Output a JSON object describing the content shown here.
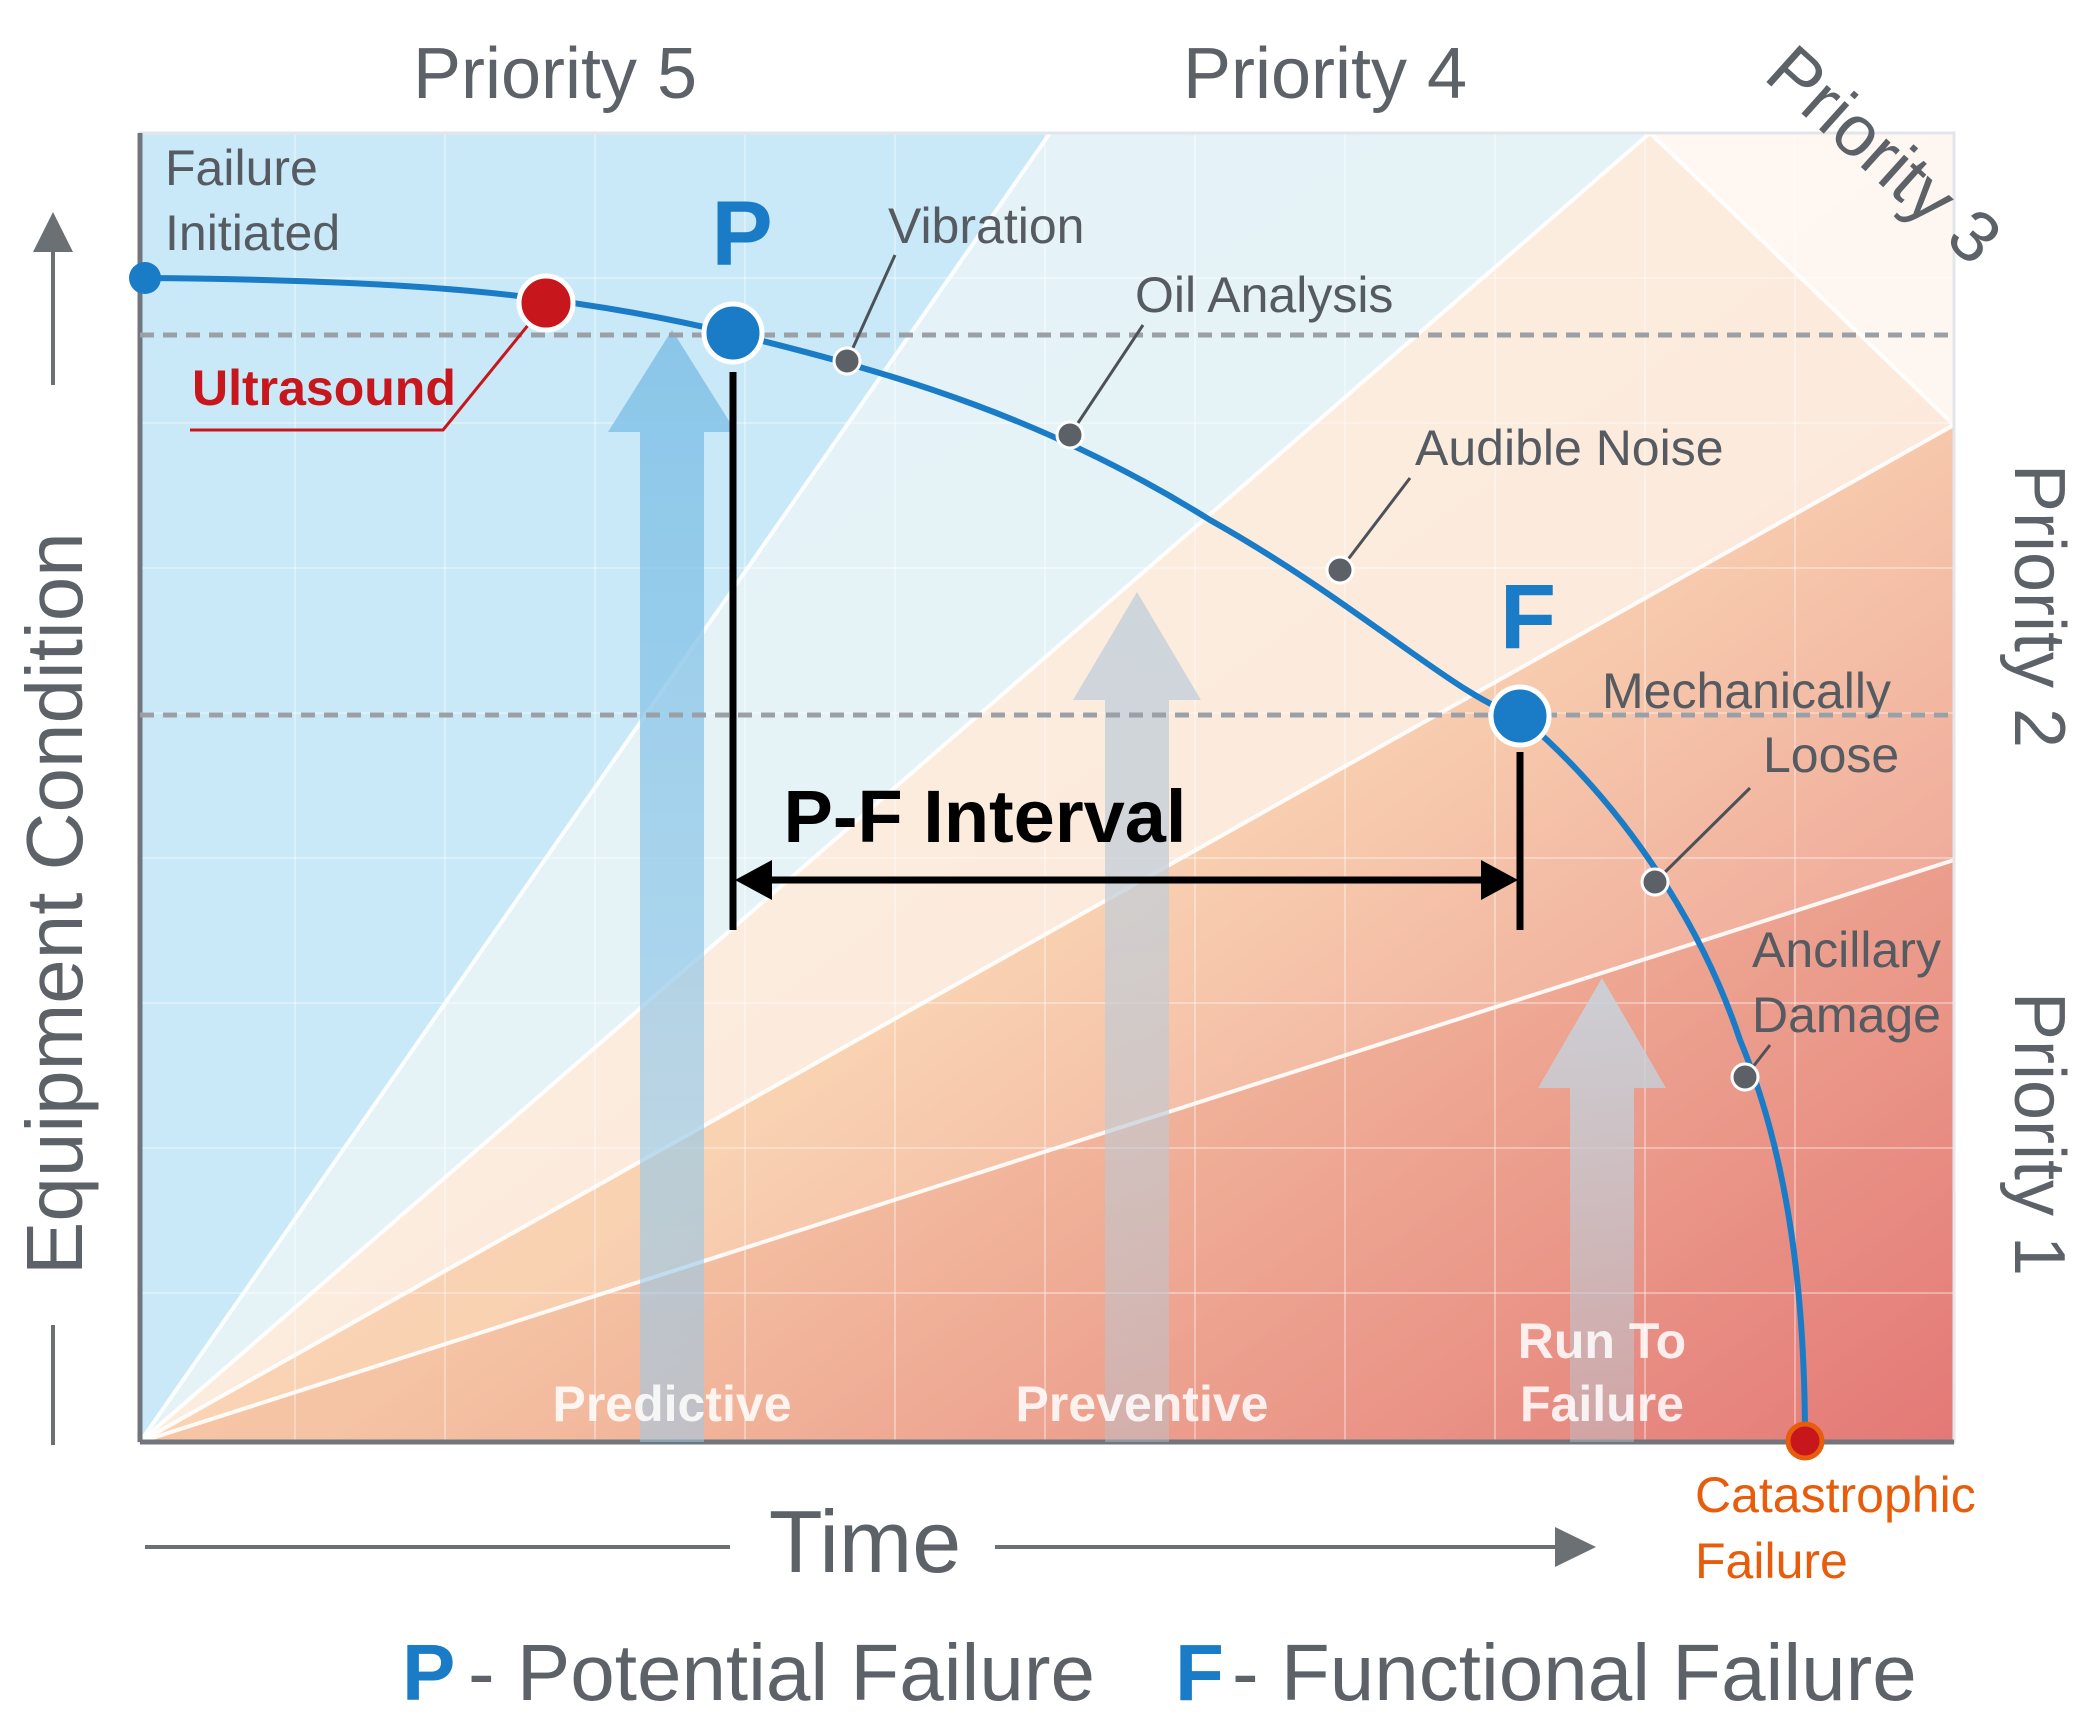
{
  "priorities": {
    "p5": "Priority 5",
    "p4": "Priority 4",
    "p3": "Priority 3",
    "p2": "Priority 2",
    "p1": "Priority 1"
  },
  "axes": {
    "y": "Equipment Condition",
    "x": "Time"
  },
  "curve_points": {
    "failure_initiated": [
      "Failure",
      "Initiated"
    ],
    "ultrasound": "Ultrasound",
    "p_marker": "P",
    "vibration": "Vibration",
    "oil_analysis": "Oil Analysis",
    "audible_noise": "Audible Noise",
    "f_marker": "F",
    "mechanically_loose": [
      "Mechanically",
      "Loose"
    ],
    "ancillary_damage": [
      "Ancillary",
      "Damage"
    ],
    "catastrophic_failure": [
      "Catastrophic",
      "Failure"
    ]
  },
  "interval": "P-F Interval",
  "zones": {
    "predictive": "Predictive",
    "preventive": "Preventive",
    "run_to_failure": [
      "Run To",
      "Failure"
    ]
  },
  "legend": {
    "p_letter": "P",
    "p_text": "- Potential Failure",
    "f_letter": "F",
    "f_text": "- Functional Failure"
  },
  "colors": {
    "curve_blue": "#1a7bc6",
    "ultrasound_red": "#c8161d",
    "catastrophic_orange": "#e85d0c",
    "text_gray": "#555b61",
    "zone_blue": "#cdebf8",
    "zone_peach": "#f6d9bf",
    "zone_red": "#d94f57"
  }
}
